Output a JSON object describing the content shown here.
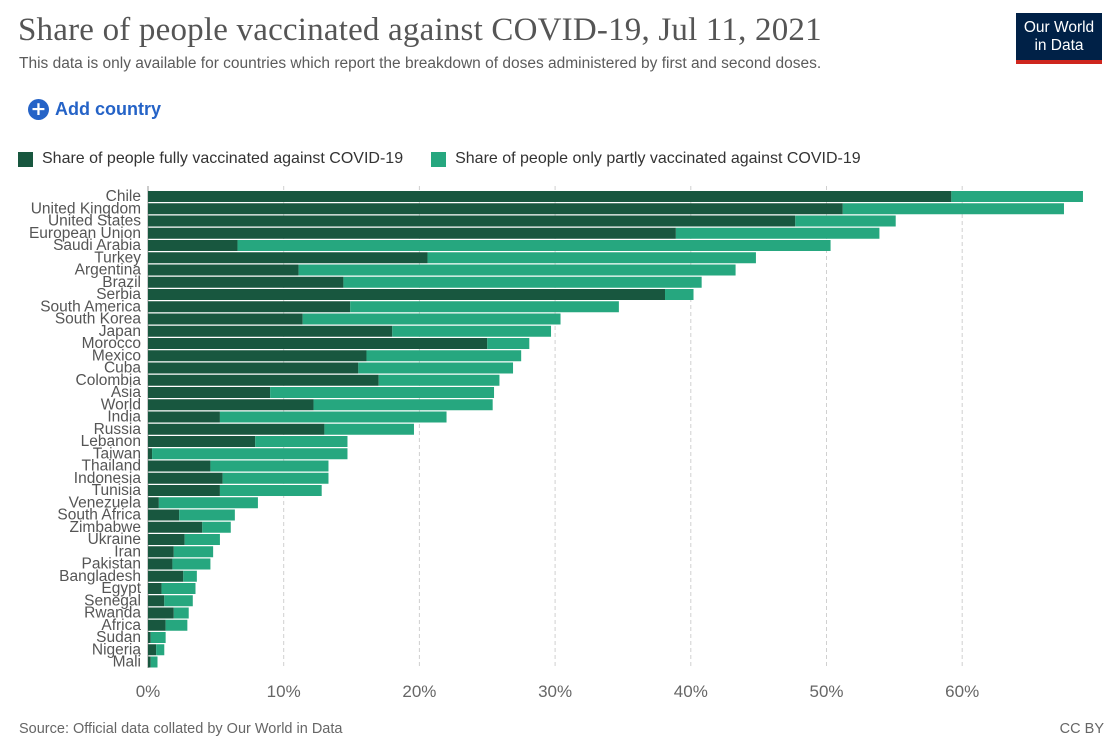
{
  "header": {
    "title": "Share of people vaccinated against COVID-19, Jul 11, 2021",
    "subtitle": "This data is only available for countries which report the breakdown of doses administered by first and second doses.",
    "logo_line1": "Our World",
    "logo_line2": "in Data"
  },
  "controls": {
    "add_country_label": "Add country",
    "add_icon": "+"
  },
  "colors": {
    "fully": "#18573f",
    "partly": "#26a77f",
    "grid": "#d0d0d0"
  },
  "chart_data": {
    "type": "bar",
    "orientation": "horizontal",
    "stacked": true,
    "xlim": [
      0,
      70
    ],
    "x_ticks": [
      0,
      10,
      20,
      30,
      40,
      50,
      60
    ],
    "x_tick_labels": [
      "0%",
      "10%",
      "20%",
      "30%",
      "40%",
      "50%",
      "60%"
    ],
    "grid": true,
    "legend_position": "top",
    "categories": [
      "Chile",
      "United Kingdom",
      "United States",
      "European Union",
      "Saudi Arabia",
      "Turkey",
      "Argentina",
      "Brazil",
      "Serbia",
      "South America",
      "South Korea",
      "Japan",
      "Morocco",
      "Mexico",
      "Cuba",
      "Colombia",
      "Asia",
      "World",
      "India",
      "Russia",
      "Lebanon",
      "Taiwan",
      "Thailand",
      "Indonesia",
      "Tunisia",
      "Venezuela",
      "South Africa",
      "Zimbabwe",
      "Ukraine",
      "Iran",
      "Pakistan",
      "Bangladesh",
      "Egypt",
      "Senegal",
      "Rwanda",
      "Africa",
      "Sudan",
      "Nigeria",
      "Mali"
    ],
    "series": [
      {
        "name": "Share of people fully vaccinated against COVID-19",
        "values": [
          59.2,
          51.2,
          47.7,
          38.9,
          6.6,
          20.6,
          11.1,
          14.4,
          38.1,
          14.9,
          11.4,
          18.0,
          25.0,
          16.1,
          15.5,
          17.0,
          9.0,
          12.2,
          5.3,
          13.0,
          7.9,
          0.3,
          4.6,
          5.5,
          5.3,
          0.8,
          2.3,
          4.0,
          2.7,
          1.9,
          1.8,
          2.6,
          1.0,
          1.2,
          1.9,
          1.3,
          0.2,
          0.6,
          0.2
        ]
      },
      {
        "name": "Share of people only partly vaccinated against COVID-19",
        "values": [
          9.7,
          16.3,
          7.4,
          15.0,
          43.7,
          24.2,
          32.2,
          26.4,
          2.1,
          19.8,
          19.0,
          11.7,
          3.1,
          11.4,
          11.4,
          8.9,
          16.5,
          13.2,
          16.7,
          6.6,
          6.8,
          14.4,
          8.7,
          7.8,
          7.5,
          7.3,
          4.1,
          2.1,
          2.6,
          2.9,
          2.8,
          1.0,
          2.5,
          2.1,
          1.1,
          1.6,
          1.1,
          0.6,
          0.5
        ]
      }
    ]
  },
  "footer": {
    "source": "Source: Official data collated by Our World in Data",
    "license": "CC BY"
  }
}
